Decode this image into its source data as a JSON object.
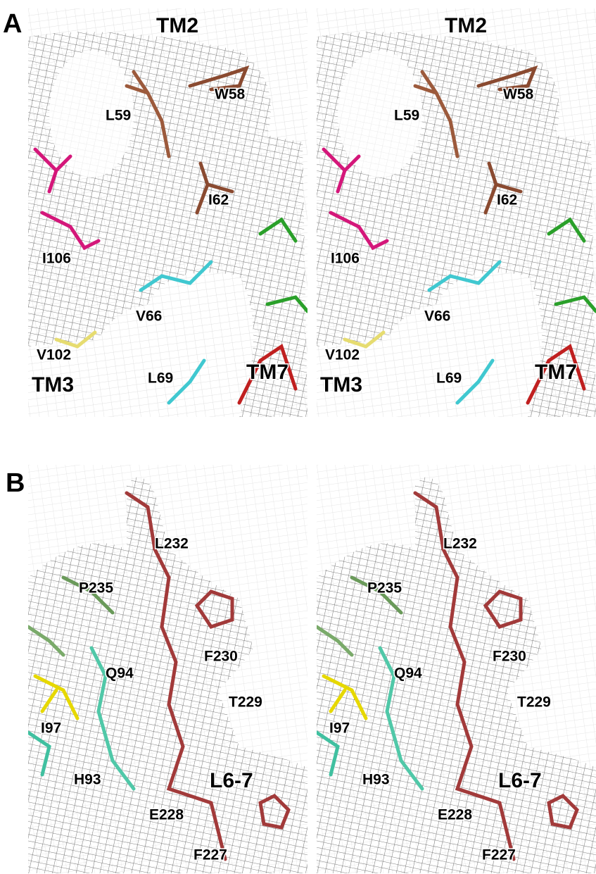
{
  "panels": [
    {
      "letter": "A",
      "labels": [
        "TM2",
        "W58",
        "L59",
        "I62",
        "I106",
        "V66",
        "V102",
        "TM3",
        "L69",
        "TM7"
      ]
    },
    {
      "letter": "B",
      "labels": [
        "L232",
        "P235",
        "F230",
        "Q94",
        "T229",
        "I97",
        "L6-7",
        "H93",
        "E228",
        "F227"
      ]
    }
  ]
}
